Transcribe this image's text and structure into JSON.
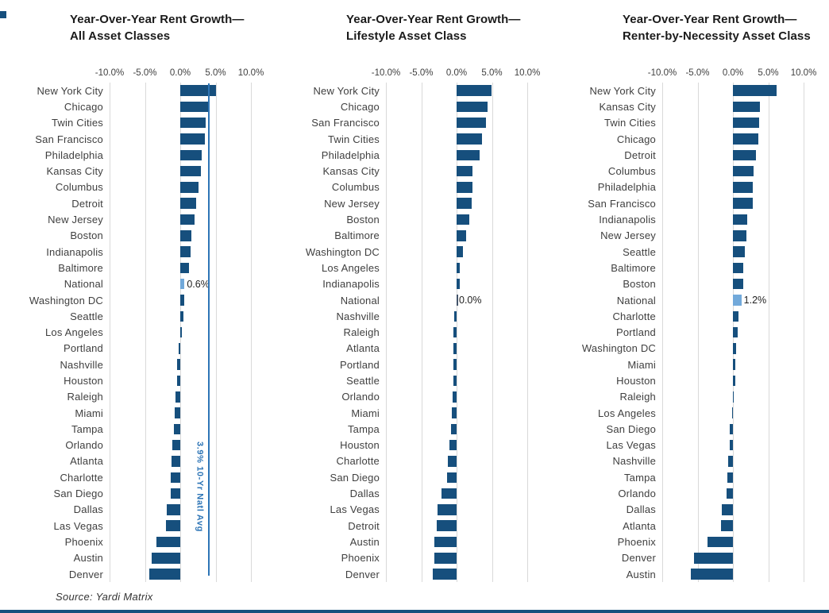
{
  "page": {
    "source_note": "Source: Yardi Matrix"
  },
  "colors": {
    "bar_navy": "#164F7D",
    "bar_national": "#72A9DA",
    "avg_line_blue": "#2E75B6",
    "zero_bar": "#44546A",
    "gridline": "#D9D9D9"
  },
  "chart_data": [
    {
      "type": "bar",
      "orientation": "horizontal",
      "title_lines": [
        "Year-Over-Year Rent Growth—",
        "All Asset Classes"
      ],
      "x_ticks": [
        "-10.0%",
        "-5.0%",
        "0.0%",
        "5.0%",
        "10.0%"
      ],
      "xlim": [
        -10,
        10
      ],
      "unit": "percent",
      "categories": [
        "New York City",
        "Chicago",
        "Twin Cities",
        "San Francisco",
        "Philadelphia",
        "Kansas City",
        "Columbus",
        "Detroit",
        "New Jersey",
        "Boston",
        "Indianapolis",
        "Baltimore",
        "National",
        "Washington DC",
        "Seattle",
        "Los Angeles",
        "Portland",
        "Nashville",
        "Houston",
        "Raleigh",
        "Miami",
        "Tampa",
        "Orlando",
        "Atlanta",
        "Charlotte",
        "San Diego",
        "Dallas",
        "Las Vegas",
        "Phoenix",
        "Austin",
        "Denver"
      ],
      "values": [
        5.0,
        4.0,
        3.6,
        3.5,
        3.0,
        2.9,
        2.6,
        2.3,
        2.0,
        1.6,
        1.5,
        1.2,
        0.6,
        0.6,
        0.4,
        0.2,
        -0.2,
        -0.4,
        -0.5,
        -0.7,
        -0.8,
        -0.9,
        -1.1,
        -1.2,
        -1.3,
        -1.4,
        -1.9,
        -2.0,
        -3.4,
        -4.1,
        -4.4
      ],
      "national_index": 12,
      "national_value_label": "0.6%",
      "avg_line": {
        "value": 3.9,
        "label": "3.9% 10-Yr Natl Avg"
      }
    },
    {
      "type": "bar",
      "orientation": "horizontal",
      "title_lines": [
        "Year-Over-Year Rent Growth—",
        "Lifestyle Asset Class"
      ],
      "x_ticks": [
        "-10.0%",
        "-5.0%",
        "0.0%",
        "5.0%",
        "10.0%"
      ],
      "xlim": [
        -10,
        10
      ],
      "unit": "percent",
      "categories": [
        "New York City",
        "Chicago",
        "San Francisco",
        "Twin Cities",
        "Philadelphia",
        "Kansas City",
        "Columbus",
        "New Jersey",
        "Boston",
        "Baltimore",
        "Washington DC",
        "Los Angeles",
        "Indianapolis",
        "National",
        "Nashville",
        "Raleigh",
        "Atlanta",
        "Portland",
        "Seattle",
        "Orlando",
        "Miami",
        "Tampa",
        "Houston",
        "Charlotte",
        "San Diego",
        "Dallas",
        "Las Vegas",
        "Detroit",
        "Austin",
        "Phoenix",
        "Denver"
      ],
      "values": [
        4.9,
        4.4,
        4.2,
        3.6,
        3.3,
        2.3,
        2.2,
        2.1,
        1.8,
        1.3,
        0.9,
        0.5,
        0.5,
        0.0,
        -0.3,
        -0.4,
        -0.4,
        -0.4,
        -0.5,
        -0.6,
        -0.7,
        -0.8,
        -1.0,
        -1.2,
        -1.4,
        -2.1,
        -2.7,
        -2.8,
        -3.1,
        -3.2,
        -3.4
      ],
      "national_index": 13,
      "national_value_label": "0.0%"
    },
    {
      "type": "bar",
      "orientation": "horizontal",
      "title_lines": [
        "Year-Over-Year Rent Growth—",
        "Renter-by-Necessity Asset Class"
      ],
      "x_ticks": [
        "-10.0%",
        "-5.0%",
        "0.0%",
        "5.0%",
        "10.0%"
      ],
      "xlim": [
        -10,
        10
      ],
      "unit": "percent",
      "categories": [
        "New York City",
        "Kansas City",
        "Twin Cities",
        "Chicago",
        "Detroit",
        "Columbus",
        "Philadelphia",
        "San Francisco",
        "Indianapolis",
        "New Jersey",
        "Seattle",
        "Baltimore",
        "Boston",
        "National",
        "Charlotte",
        "Portland",
        "Washington DC",
        "Miami",
        "Houston",
        "Raleigh",
        "Los Angeles",
        "San Diego",
        "Las Vegas",
        "Nashville",
        "Tampa",
        "Orlando",
        "Dallas",
        "Atlanta",
        "Phoenix",
        "Denver",
        "Austin"
      ],
      "values": [
        6.2,
        3.8,
        3.7,
        3.6,
        3.3,
        2.9,
        2.8,
        2.8,
        2.0,
        1.9,
        1.7,
        1.5,
        1.5,
        1.2,
        0.8,
        0.7,
        0.4,
        0.3,
        0.3,
        0.1,
        -0.1,
        -0.4,
        -0.5,
        -0.7,
        -0.8,
        -0.9,
        -1.6,
        -1.7,
        -3.6,
        -5.5,
        -6.0
      ],
      "national_index": 13,
      "national_value_label": "1.2%"
    }
  ]
}
